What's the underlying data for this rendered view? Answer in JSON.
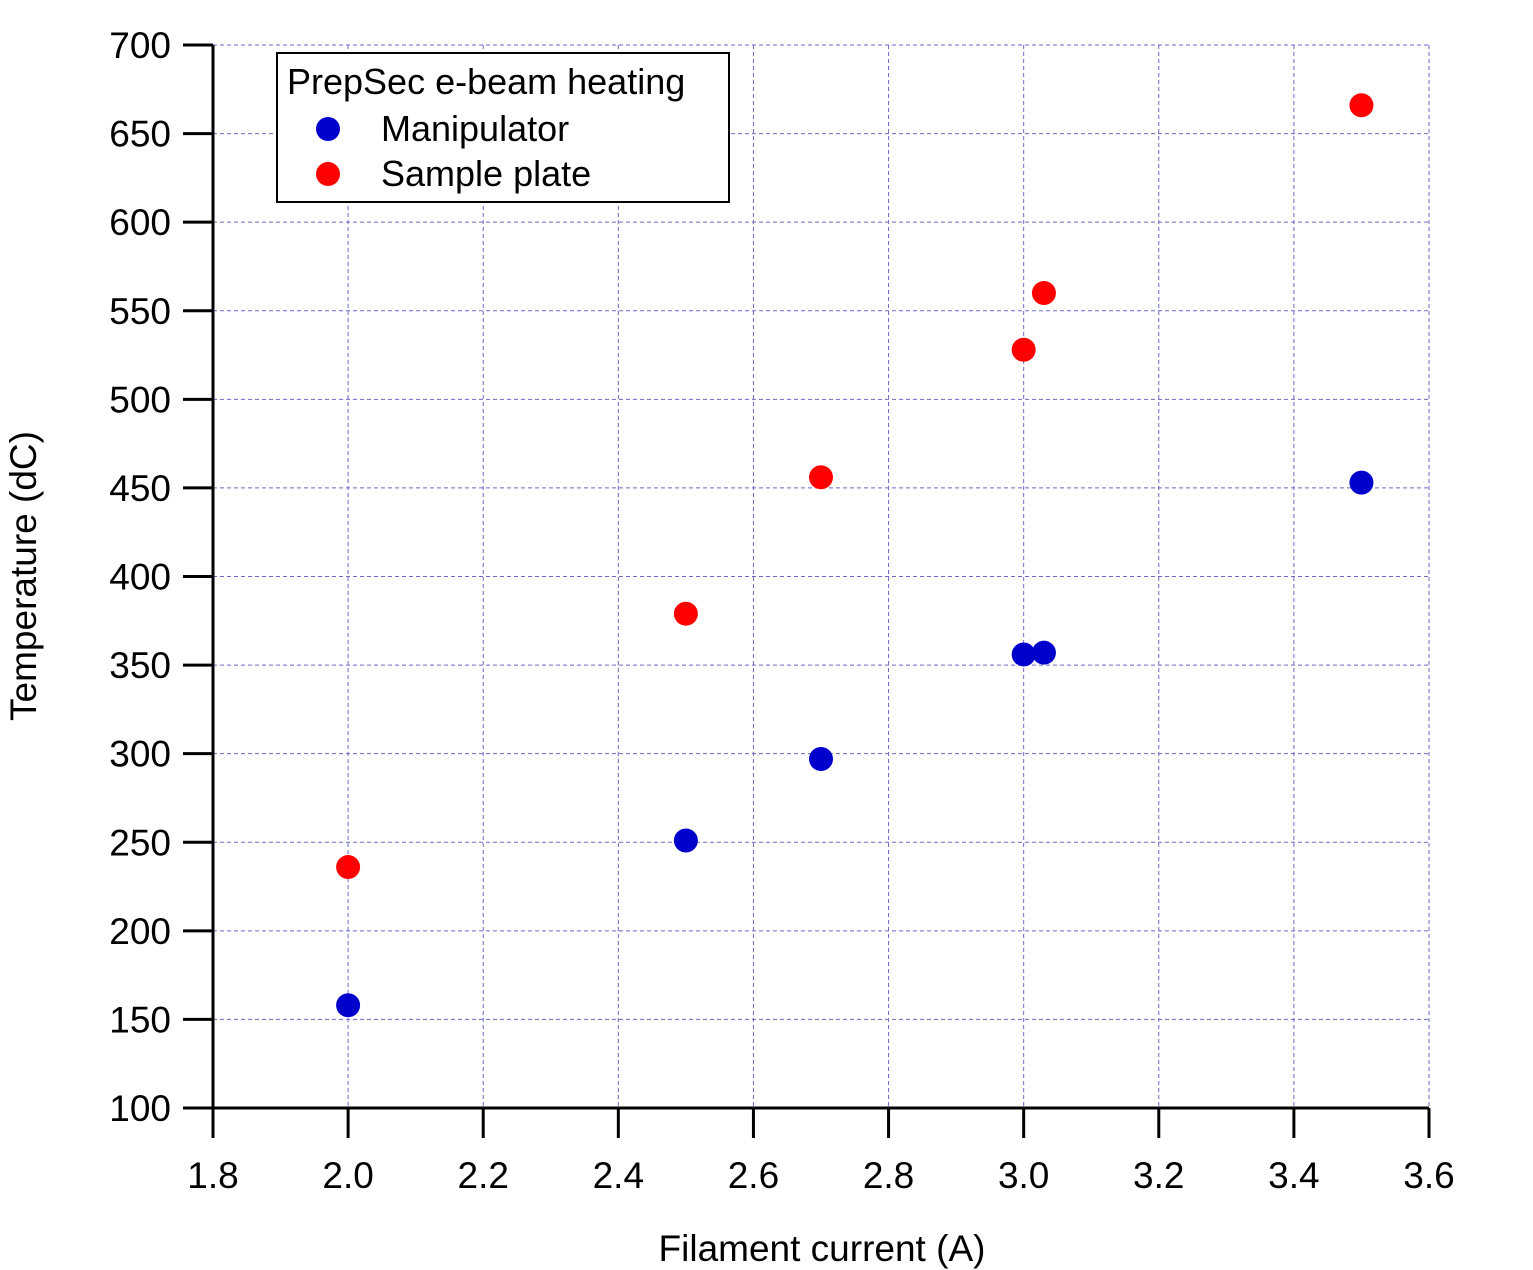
{
  "chart_data": {
    "type": "scatter",
    "xlabel": "Filament current (A)",
    "ylabel": "Temperature (dC)",
    "xlim": [
      1.8,
      3.6
    ],
    "ylim": [
      100,
      700
    ],
    "xticks": [
      "1.8",
      "2.0",
      "2.2",
      "2.4",
      "2.6",
      "2.8",
      "3.0",
      "3.2",
      "3.4",
      "3.6"
    ],
    "yticks": [
      "100",
      "150",
      "200",
      "250",
      "300",
      "350",
      "400",
      "450",
      "500",
      "550",
      "600",
      "650",
      "700"
    ],
    "grid": true,
    "legend": {
      "title": "PrepSec e-beam heating",
      "placement": "top-left"
    },
    "series": [
      {
        "name": "Manipulator",
        "color": "#0000cc",
        "points": [
          {
            "x": 2.0,
            "y": 158
          },
          {
            "x": 2.5,
            "y": 251
          },
          {
            "x": 2.7,
            "y": 297
          },
          {
            "x": 3.0,
            "y": 356
          },
          {
            "x": 3.03,
            "y": 357
          },
          {
            "x": 3.5,
            "y": 453
          }
        ]
      },
      {
        "name": "Sample plate",
        "color": "#ff0000",
        "points": [
          {
            "x": 2.0,
            "y": 236
          },
          {
            "x": 2.5,
            "y": 379
          },
          {
            "x": 2.7,
            "y": 456
          },
          {
            "x": 3.0,
            "y": 528
          },
          {
            "x": 3.03,
            "y": 560
          },
          {
            "x": 3.5,
            "y": 666
          }
        ]
      }
    ]
  }
}
